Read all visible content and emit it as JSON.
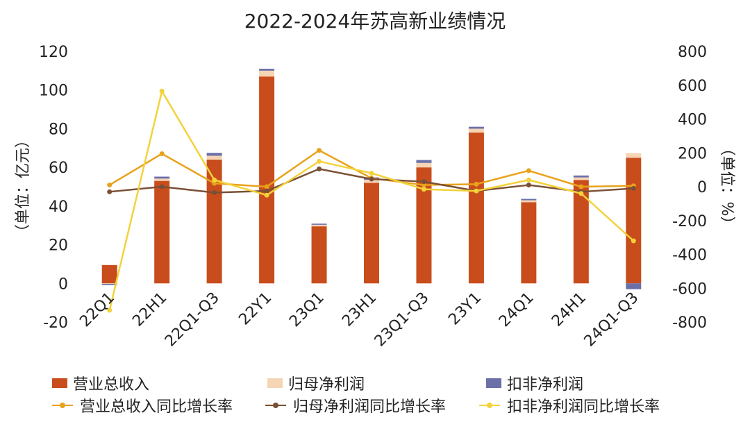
{
  "chart_data": {
    "type": "bar+line",
    "title": "2022-2024年苏高新业绩情况",
    "categories": [
      "22Q1",
      "22H1",
      "22Q1-Q3",
      "22Y1",
      "23Q1",
      "23H1",
      "23Q1-Q3",
      "23Y1",
      "24Q1",
      "24H1",
      "24Q1-Q3"
    ],
    "left_axis": {
      "label": "（单位：亿元）",
      "range": [
        -20,
        120
      ],
      "ticks": [
        -20,
        0,
        20,
        40,
        60,
        80,
        100,
        120
      ]
    },
    "right_axis": {
      "label": "（单位：%）",
      "range": [
        -800,
        800
      ],
      "ticks": [
        -800,
        -600,
        -400,
        -200,
        0,
        200,
        400,
        600,
        800
      ]
    },
    "bar_series": [
      {
        "name": "营业总收入",
        "color": "#c94d1c",
        "values": [
          9.5,
          53,
          64,
          107,
          29.5,
          52,
          60,
          78,
          42,
          53.5,
          65
        ]
      },
      {
        "name": "归母净利润",
        "color": "#f6d5b4",
        "values": [
          -0.3,
          1.2,
          2,
          3,
          0.8,
          1.6,
          2.3,
          2.0,
          1.0,
          1.3,
          2.4
        ]
      },
      {
        "name": "扣非净利润",
        "color": "#6b70a8",
        "values": [
          -0.6,
          1.0,
          1.5,
          1.0,
          0.6,
          1.2,
          1.5,
          1.0,
          0.7,
          1.0,
          -3
        ]
      }
    ],
    "line_series": [
      {
        "name": "营业总收入同比增长率",
        "color": "#e8a21b",
        "values": [
          10,
          195,
          20,
          0,
          215,
          50,
          10,
          15,
          95,
          0,
          5
        ]
      },
      {
        "name": "归母净利润同比增长率",
        "color": "#7a5035",
        "values": [
          -30,
          0,
          -35,
          -25,
          105,
          45,
          30,
          -25,
          10,
          -30,
          -10
        ]
      },
      {
        "name": "扣非净利润同比增长率",
        "color": "#f3d23a",
        "values": [
          -730,
          565,
          40,
          -50,
          150,
          80,
          -15,
          -25,
          40,
          -40,
          -320
        ]
      }
    ],
    "legend": {
      "position": "bottom"
    },
    "grid": false
  }
}
